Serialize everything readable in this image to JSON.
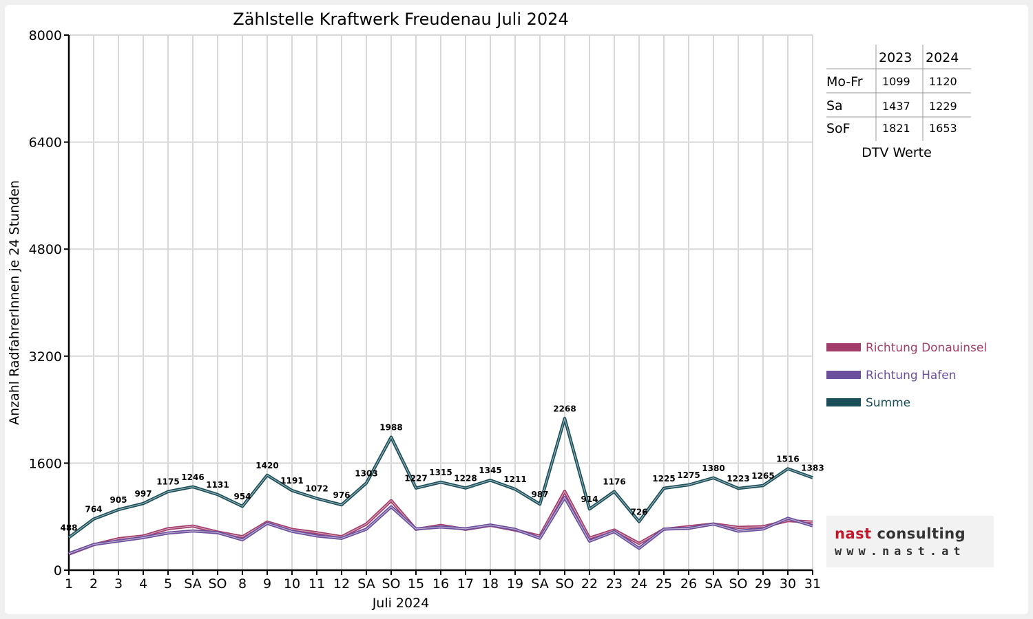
{
  "chart_data": {
    "type": "line",
    "title": "Zählstelle Kraftwerk Freudenau Juli 2024",
    "xlabel": "Juli 2024",
    "ylabel": "Anzahl RadfahrerInnen je 24 Stunden",
    "ylim": [
      0,
      8000
    ],
    "yticks": [
      "0",
      "1600",
      "3200",
      "4800",
      "6400",
      "8000"
    ],
    "grid": true,
    "legend_position": "right",
    "categories": [
      "1",
      "2",
      "3",
      "4",
      "5",
      "SA",
      "SO",
      "8",
      "9",
      "10",
      "11",
      "12",
      "SA",
      "SO",
      "15",
      "16",
      "17",
      "18",
      "19",
      "SA",
      "SO",
      "22",
      "23",
      "24",
      "25",
      "26",
      "SA",
      "SO",
      "29",
      "30",
      "31"
    ],
    "weekend_categories": {
      "SA": "#000000",
      "SO": "#e00000"
    },
    "series": [
      {
        "name": "Richtung Donauinsel",
        "color": "#a33d6b",
        "values": [
          240,
          380,
          470,
          510,
          620,
          660,
          570,
          500,
          720,
          610,
          560,
          500,
          690,
          1040,
          610,
          670,
          610,
          670,
          600,
          510,
          1180,
          480,
          600,
          400,
          610,
          650,
          690,
          640,
          650,
          740,
          720
        ]
      },
      {
        "name": "Richtung Hafen",
        "color": "#6b4f9c",
        "values": [
          248,
          384,
          435,
          487,
          555,
          586,
          561,
          454,
          700,
          581,
          512,
          476,
          613,
          948,
          617,
          645,
          618,
          675,
          611,
          477,
          1088,
          434,
          576,
          326,
          615,
          625,
          690,
          583,
          615,
          776,
          663
        ]
      },
      {
        "name": "Summe",
        "color": "#1a4f5a",
        "values": [
          488,
          764,
          905,
          997,
          1175,
          1246,
          1131,
          954,
          1420,
          1191,
          1072,
          976,
          1303,
          1988,
          1227,
          1315,
          1228,
          1345,
          1211,
          987,
          2268,
          914,
          1176,
          726,
          1225,
          1275,
          1380,
          1223,
          1265,
          1516,
          1383
        ]
      }
    ]
  },
  "dtv_table": {
    "caption": "DTV Werte",
    "columns": [
      "2023",
      "2024"
    ],
    "rows": [
      {
        "label": "Mo-Fr",
        "v2023": "1099",
        "v2024": "1120"
      },
      {
        "label": "Sa",
        "v2023": "1437",
        "v2024": "1229"
      },
      {
        "label": "SoF",
        "v2023": "1821",
        "v2024": "1653"
      }
    ]
  },
  "logo": {
    "text_main": "nast",
    "text_accent": "consulting",
    "url_text": "www.nast.at"
  }
}
